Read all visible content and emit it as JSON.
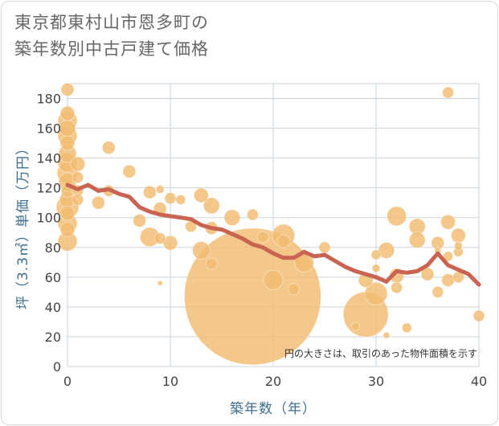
{
  "chart_data": {
    "type": "scatter",
    "title_line1": "東京都東村山市恩多町の",
    "title_line2": "築年数別中古戸建て価格",
    "xlabel": "築年数（年）",
    "ylabel": "坪（3.3㎡）単価（万円）",
    "xlim": [
      0,
      40
    ],
    "ylim": [
      0,
      190
    ],
    "x_ticks": [
      0,
      10,
      20,
      30,
      40
    ],
    "y_ticks": [
      0,
      20,
      40,
      60,
      80,
      100,
      120,
      140,
      160,
      180
    ],
    "grid": true,
    "note": "円の大きさは、取引のあった物件面積を示す",
    "colors": {
      "bubble": "#f2bc72",
      "line": "#c96452",
      "grid": "#c9d3dd",
      "axis_text": "#3f6f8e"
    },
    "series": [
      {
        "kind": "bubbles",
        "points": [
          {
            "x": 0,
            "y": 186,
            "s": 8
          },
          {
            "x": 0,
            "y": 170,
            "s": 9
          },
          {
            "x": 0,
            "y": 165,
            "s": 12
          },
          {
            "x": 0,
            "y": 160,
            "s": 10
          },
          {
            "x": 0,
            "y": 155,
            "s": 12
          },
          {
            "x": 0,
            "y": 150,
            "s": 9
          },
          {
            "x": 0,
            "y": 143,
            "s": 11
          },
          {
            "x": 0,
            "y": 137,
            "s": 12
          },
          {
            "x": 0,
            "y": 130,
            "s": 13
          },
          {
            "x": 0,
            "y": 124,
            "s": 11
          },
          {
            "x": 0,
            "y": 118,
            "s": 8
          },
          {
            "x": 0,
            "y": 112,
            "s": 10
          },
          {
            "x": 0,
            "y": 107,
            "s": 14
          },
          {
            "x": 0,
            "y": 103,
            "s": 9
          },
          {
            "x": 0,
            "y": 96,
            "s": 12
          },
          {
            "x": 0,
            "y": 92,
            "s": 9
          },
          {
            "x": 0,
            "y": 84,
            "s": 12
          },
          {
            "x": 1,
            "y": 136,
            "s": 9
          },
          {
            "x": 1,
            "y": 127,
            "s": 7
          },
          {
            "x": 1,
            "y": 118,
            "s": 7
          },
          {
            "x": 1,
            "y": 112,
            "s": 7
          },
          {
            "x": 3,
            "y": 110,
            "s": 8
          },
          {
            "x": 4,
            "y": 147,
            "s": 8
          },
          {
            "x": 4,
            "y": 118,
            "s": 7
          },
          {
            "x": 6,
            "y": 131,
            "s": 8
          },
          {
            "x": 7,
            "y": 98,
            "s": 8
          },
          {
            "x": 8,
            "y": 117,
            "s": 8
          },
          {
            "x": 8,
            "y": 87,
            "s": 12
          },
          {
            "x": 9,
            "y": 119,
            "s": 5
          },
          {
            "x": 9,
            "y": 106,
            "s": 8
          },
          {
            "x": 9,
            "y": 86,
            "s": 7
          },
          {
            "x": 9,
            "y": 56,
            "s": 3
          },
          {
            "x": 10,
            "y": 113,
            "s": 7
          },
          {
            "x": 10,
            "y": 83,
            "s": 9
          },
          {
            "x": 11,
            "y": 112,
            "s": 6
          },
          {
            "x": 12,
            "y": 94,
            "s": 7
          },
          {
            "x": 13,
            "y": 115,
            "s": 9
          },
          {
            "x": 13,
            "y": 78,
            "s": 11
          },
          {
            "x": 14,
            "y": 108,
            "s": 10
          },
          {
            "x": 14,
            "y": 93,
            "s": 8
          },
          {
            "x": 14,
            "y": 69,
            "s": 7
          },
          {
            "x": 16,
            "y": 100,
            "s": 10
          },
          {
            "x": 18,
            "y": 47,
            "s": 85
          },
          {
            "x": 18,
            "y": 102,
            "s": 7
          },
          {
            "x": 19,
            "y": 87,
            "s": 7
          },
          {
            "x": 20,
            "y": 58,
            "s": 12
          },
          {
            "x": 21,
            "y": 88,
            "s": 14
          },
          {
            "x": 21,
            "y": 84,
            "s": 8
          },
          {
            "x": 22,
            "y": 52,
            "s": 7
          },
          {
            "x": 23,
            "y": 70,
            "s": 12
          },
          {
            "x": 25,
            "y": 80,
            "s": 7
          },
          {
            "x": 28,
            "y": 27,
            "s": 5
          },
          {
            "x": 29,
            "y": 35,
            "s": 28
          },
          {
            "x": 29,
            "y": 58,
            "s": 9
          },
          {
            "x": 30,
            "y": 49,
            "s": 14
          },
          {
            "x": 30,
            "y": 75,
            "s": 6
          },
          {
            "x": 30,
            "y": 66,
            "s": 5
          },
          {
            "x": 31,
            "y": 78,
            "s": 10
          },
          {
            "x": 31,
            "y": 21,
            "s": 4
          },
          {
            "x": 32,
            "y": 101,
            "s": 12
          },
          {
            "x": 32,
            "y": 61,
            "s": 9
          },
          {
            "x": 32,
            "y": 53,
            "s": 7
          },
          {
            "x": 33,
            "y": 26,
            "s": 6
          },
          {
            "x": 34,
            "y": 94,
            "s": 10
          },
          {
            "x": 34,
            "y": 85,
            "s": 10
          },
          {
            "x": 35,
            "y": 62,
            "s": 8
          },
          {
            "x": 36,
            "y": 83,
            "s": 8
          },
          {
            "x": 36,
            "y": 50,
            "s": 7
          },
          {
            "x": 36,
            "y": 78,
            "s": 4
          },
          {
            "x": 37,
            "y": 184,
            "s": 7
          },
          {
            "x": 37,
            "y": 97,
            "s": 9
          },
          {
            "x": 37,
            "y": 74,
            "s": 6
          },
          {
            "x": 37,
            "y": 58,
            "s": 8
          },
          {
            "x": 38,
            "y": 88,
            "s": 9
          },
          {
            "x": 38,
            "y": 81,
            "s": 5
          },
          {
            "x": 38,
            "y": 77,
            "s": 6
          },
          {
            "x": 38,
            "y": 60,
            "s": 7
          },
          {
            "x": 40,
            "y": 34,
            "s": 7
          }
        ]
      },
      {
        "kind": "line",
        "points": [
          {
            "x": 0,
            "y": 122
          },
          {
            "x": 1,
            "y": 119
          },
          {
            "x": 2,
            "y": 122
          },
          {
            "x": 3,
            "y": 118
          },
          {
            "x": 4,
            "y": 119
          },
          {
            "x": 5,
            "y": 116
          },
          {
            "x": 6,
            "y": 114
          },
          {
            "x": 7,
            "y": 107
          },
          {
            "x": 8,
            "y": 104
          },
          {
            "x": 9,
            "y": 102
          },
          {
            "x": 10,
            "y": 101
          },
          {
            "x": 11,
            "y": 100
          },
          {
            "x": 12,
            "y": 99
          },
          {
            "x": 13,
            "y": 95
          },
          {
            "x": 14,
            "y": 93
          },
          {
            "x": 15,
            "y": 92
          },
          {
            "x": 16,
            "y": 89
          },
          {
            "x": 17,
            "y": 86
          },
          {
            "x": 18,
            "y": 82
          },
          {
            "x": 19,
            "y": 80
          },
          {
            "x": 20,
            "y": 76
          },
          {
            "x": 21,
            "y": 73
          },
          {
            "x": 22,
            "y": 73
          },
          {
            "x": 23,
            "y": 77
          },
          {
            "x": 24,
            "y": 74
          },
          {
            "x": 25,
            "y": 75
          },
          {
            "x": 26,
            "y": 71
          },
          {
            "x": 27,
            "y": 67
          },
          {
            "x": 28,
            "y": 64
          },
          {
            "x": 29,
            "y": 62
          },
          {
            "x": 30,
            "y": 60
          },
          {
            "x": 31,
            "y": 57
          },
          {
            "x": 32,
            "y": 64
          },
          {
            "x": 33,
            "y": 63
          },
          {
            "x": 34,
            "y": 64
          },
          {
            "x": 35,
            "y": 68
          },
          {
            "x": 36,
            "y": 76
          },
          {
            "x": 37,
            "y": 68
          },
          {
            "x": 38,
            "y": 65
          },
          {
            "x": 39,
            "y": 62
          },
          {
            "x": 40,
            "y": 55
          }
        ]
      }
    ]
  }
}
